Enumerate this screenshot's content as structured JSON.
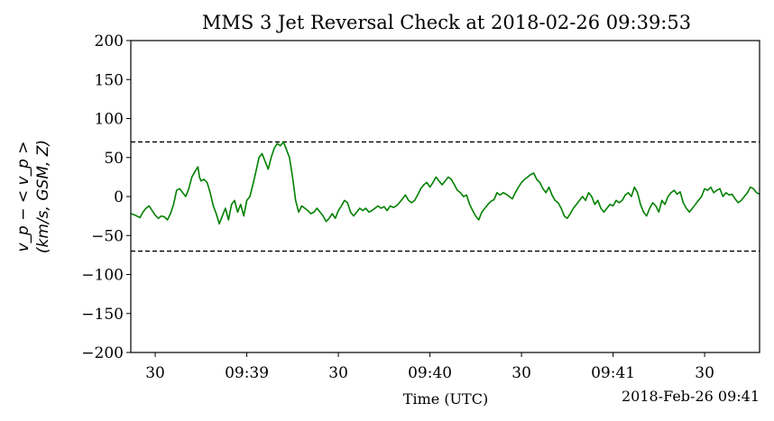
{
  "chart_data": {
    "type": "line",
    "title": "MMS 3 Jet Reversal Check at 2018-02-26 09:39:53",
    "xlabel": "Time (UTC)",
    "ylabel_line1": "v_p − < v_p >",
    "ylabel_line2": "(km/s, GSM, Z)",
    "date_annotation": "2018-Feb-26 09:41",
    "x_range": [
      "09:38:22",
      "09:41:48"
    ],
    "ylim": [
      -200,
      200
    ],
    "y_ticks": [
      -200,
      -150,
      -100,
      -50,
      0,
      50,
      100,
      150,
      200
    ],
    "y_tick_labels": [
      "−200",
      "−150",
      "−100",
      "−50",
      "0",
      "50",
      "100",
      "150",
      "200"
    ],
    "x_ticks": [
      {
        "t": 30,
        "label": "30"
      },
      {
        "t": 60,
        "label": "09:39"
      },
      {
        "t": 90,
        "label": "30"
      },
      {
        "t": 120,
        "label": "09:40"
      },
      {
        "t": 150,
        "label": "30"
      },
      {
        "t": 180,
        "label": "09:41"
      },
      {
        "t": 210,
        "label": "30"
      }
    ],
    "x_time_units": "seconds after 09:38:00",
    "x_min": 22,
    "x_max": 228,
    "thresholds": [
      70,
      -70
    ],
    "threshold_style": "dashed black",
    "series": [
      {
        "color": "#008000",
        "points": [
          [
            22,
            -22
          ],
          [
            23.5,
            -24
          ],
          [
            25,
            -27
          ],
          [
            26,
            -20
          ],
          [
            27,
            -15
          ],
          [
            28,
            -12
          ],
          [
            29,
            -18
          ],
          [
            30,
            -24
          ],
          [
            31,
            -28
          ],
          [
            32,
            -25
          ],
          [
            33,
            -26
          ],
          [
            34,
            -30
          ],
          [
            35,
            -22
          ],
          [
            36,
            -10
          ],
          [
            37,
            8
          ],
          [
            38,
            10
          ],
          [
            39,
            5
          ],
          [
            40,
            0
          ],
          [
            41,
            10
          ],
          [
            42,
            25
          ],
          [
            43,
            32
          ],
          [
            44,
            38
          ],
          [
            44.5,
            25
          ],
          [
            45,
            20
          ],
          [
            46,
            22
          ],
          [
            47,
            18
          ],
          [
            48,
            5
          ],
          [
            49,
            -12
          ],
          [
            50,
            -22
          ],
          [
            51,
            -35
          ],
          [
            52,
            -25
          ],
          [
            53,
            -15
          ],
          [
            54,
            -30
          ],
          [
            55,
            -10
          ],
          [
            56,
            -5
          ],
          [
            57,
            -20
          ],
          [
            58,
            -10
          ],
          [
            59,
            -25
          ],
          [
            60,
            -5
          ],
          [
            61,
            0
          ],
          [
            62,
            15
          ],
          [
            63,
            32
          ],
          [
            64,
            50
          ],
          [
            65,
            55
          ],
          [
            66,
            45
          ],
          [
            67,
            35
          ],
          [
            68,
            50
          ],
          [
            69,
            62
          ],
          [
            70,
            68
          ],
          [
            71,
            65
          ],
          [
            72,
            70
          ],
          [
            73,
            60
          ],
          [
            74,
            50
          ],
          [
            75,
            25
          ],
          [
            76,
            -5
          ],
          [
            77,
            -20
          ],
          [
            78,
            -12
          ],
          [
            79,
            -15
          ],
          [
            80,
            -18
          ],
          [
            81,
            -22
          ],
          [
            82,
            -20
          ],
          [
            83,
            -15
          ],
          [
            84,
            -20
          ],
          [
            85,
            -25
          ],
          [
            86,
            -32
          ],
          [
            87,
            -28
          ],
          [
            88,
            -22
          ],
          [
            89,
            -28
          ],
          [
            90,
            -18
          ],
          [
            91,
            -12
          ],
          [
            92,
            -5
          ],
          [
            93,
            -8
          ],
          [
            94,
            -20
          ],
          [
            95,
            -25
          ],
          [
            96,
            -20
          ],
          [
            97,
            -15
          ],
          [
            98,
            -18
          ],
          [
            99,
            -15
          ],
          [
            100,
            -20
          ],
          [
            101,
            -18
          ],
          [
            102,
            -15
          ],
          [
            103,
            -12
          ],
          [
            104,
            -15
          ],
          [
            105,
            -13
          ],
          [
            106,
            -18
          ],
          [
            107,
            -12
          ],
          [
            108,
            -14
          ],
          [
            109,
            -12
          ],
          [
            110,
            -8
          ],
          [
            111,
            -3
          ],
          [
            112,
            2
          ],
          [
            113,
            -5
          ],
          [
            114,
            -8
          ],
          [
            115,
            -5
          ],
          [
            116,
            2
          ],
          [
            117,
            10
          ],
          [
            118,
            15
          ],
          [
            119,
            18
          ],
          [
            120,
            12
          ],
          [
            121,
            18
          ],
          [
            122,
            25
          ],
          [
            123,
            20
          ],
          [
            124,
            15
          ],
          [
            125,
            20
          ],
          [
            126,
            25
          ],
          [
            127,
            22
          ],
          [
            128,
            15
          ],
          [
            129,
            8
          ],
          [
            130,
            5
          ],
          [
            131,
            0
          ],
          [
            132,
            2
          ],
          [
            133,
            -10
          ],
          [
            134,
            -18
          ],
          [
            135,
            -25
          ],
          [
            136,
            -30
          ],
          [
            137,
            -20
          ],
          [
            138,
            -15
          ],
          [
            139,
            -10
          ],
          [
            140,
            -6
          ],
          [
            141,
            -4
          ],
          [
            142,
            5
          ],
          [
            143,
            2
          ],
          [
            144,
            5
          ],
          [
            145,
            3
          ],
          [
            146,
            0
          ],
          [
            147,
            -3
          ],
          [
            148,
            5
          ],
          [
            149,
            12
          ],
          [
            150,
            18
          ],
          [
            151,
            22
          ],
          [
            152,
            25
          ],
          [
            153,
            28
          ],
          [
            154,
            30
          ],
          [
            155,
            22
          ],
          [
            156,
            18
          ],
          [
            157,
            10
          ],
          [
            158,
            5
          ],
          [
            159,
            12
          ],
          [
            160,
            2
          ],
          [
            161,
            -5
          ],
          [
            162,
            -8
          ],
          [
            163,
            -15
          ],
          [
            164,
            -25
          ],
          [
            165,
            -28
          ],
          [
            166,
            -22
          ],
          [
            167,
            -15
          ],
          [
            168,
            -10
          ],
          [
            169,
            -5
          ],
          [
            170,
            0
          ],
          [
            171,
            -5
          ],
          [
            172,
            5
          ],
          [
            173,
            0
          ],
          [
            174,
            -10
          ],
          [
            175,
            -5
          ],
          [
            176,
            -15
          ],
          [
            177,
            -20
          ],
          [
            178,
            -15
          ],
          [
            179,
            -10
          ],
          [
            180,
            -12
          ],
          [
            181,
            -5
          ],
          [
            182,
            -8
          ],
          [
            183,
            -5
          ],
          [
            184,
            2
          ],
          [
            185,
            5
          ],
          [
            186,
            0
          ],
          [
            187,
            12
          ],
          [
            188,
            5
          ],
          [
            189,
            -10
          ],
          [
            190,
            -20
          ],
          [
            191,
            -25
          ],
          [
            192,
            -15
          ],
          [
            193,
            -8
          ],
          [
            194,
            -12
          ],
          [
            195,
            -20
          ],
          [
            196,
            -5
          ],
          [
            197,
            -10
          ],
          [
            198,
            0
          ],
          [
            199,
            5
          ],
          [
            200,
            8
          ],
          [
            201,
            3
          ],
          [
            202,
            6
          ],
          [
            203,
            -8
          ],
          [
            204,
            -15
          ],
          [
            205,
            -20
          ],
          [
            206,
            -15
          ],
          [
            207,
            -10
          ],
          [
            208,
            -5
          ],
          [
            209,
            0
          ],
          [
            210,
            10
          ],
          [
            211,
            8
          ],
          [
            212,
            12
          ],
          [
            213,
            5
          ],
          [
            214,
            8
          ],
          [
            215,
            10
          ],
          [
            216,
            0
          ],
          [
            217,
            5
          ],
          [
            218,
            2
          ],
          [
            219,
            3
          ],
          [
            220,
            -3
          ],
          [
            221,
            -8
          ],
          [
            222,
            -5
          ],
          [
            223,
            0
          ],
          [
            224,
            5
          ],
          [
            225,
            12
          ],
          [
            226,
            10
          ],
          [
            227,
            5
          ],
          [
            228,
            3
          ]
        ]
      }
    ]
  }
}
